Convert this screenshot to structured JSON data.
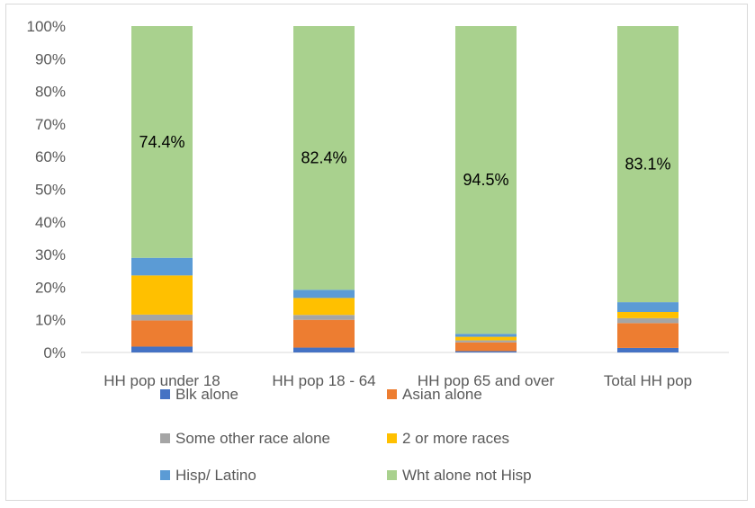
{
  "chart_data": {
    "type": "bar",
    "stacked": true,
    "percent_stacked": true,
    "categories": [
      "HH pop under 18",
      "HH pop 18 - 64",
      "HH pop 65 and over",
      "Total HH pop"
    ],
    "series": [
      {
        "name": "Blk alone",
        "color": "#4472c4",
        "values": [
          1.8,
          1.5,
          0.4,
          1.4
        ]
      },
      {
        "name": "Asian alone",
        "color": "#ed7d31",
        "values": [
          8.0,
          8.5,
          2.7,
          7.6
        ]
      },
      {
        "name": "Some other race alone",
        "color": "#a5a5a5",
        "values": [
          1.8,
          1.5,
          0.6,
          1.5
        ]
      },
      {
        "name": "2 or more races",
        "color": "#ffc000",
        "values": [
          12.0,
          5.2,
          1.1,
          1.9
        ]
      },
      {
        "name": "Hisp/ Latino",
        "color": "#5b9bd5",
        "values": [
          5.4,
          2.5,
          0.9,
          3.0
        ]
      },
      {
        "name": "Wht alone not Hisp",
        "color": "#a9d18e",
        "values": [
          71.0,
          80.8,
          94.3,
          84.6
        ]
      }
    ],
    "data_labels": [
      "74.4%",
      "82.4%",
      "94.5%",
      "83.1%"
    ],
    "y_ticks": [
      "0%",
      "10%",
      "20%",
      "30%",
      "40%",
      "50%",
      "60%",
      "70%",
      "80%",
      "90%",
      "100%"
    ],
    "ylim": [
      0,
      100
    ],
    "grid": false,
    "legend": "bottom"
  }
}
